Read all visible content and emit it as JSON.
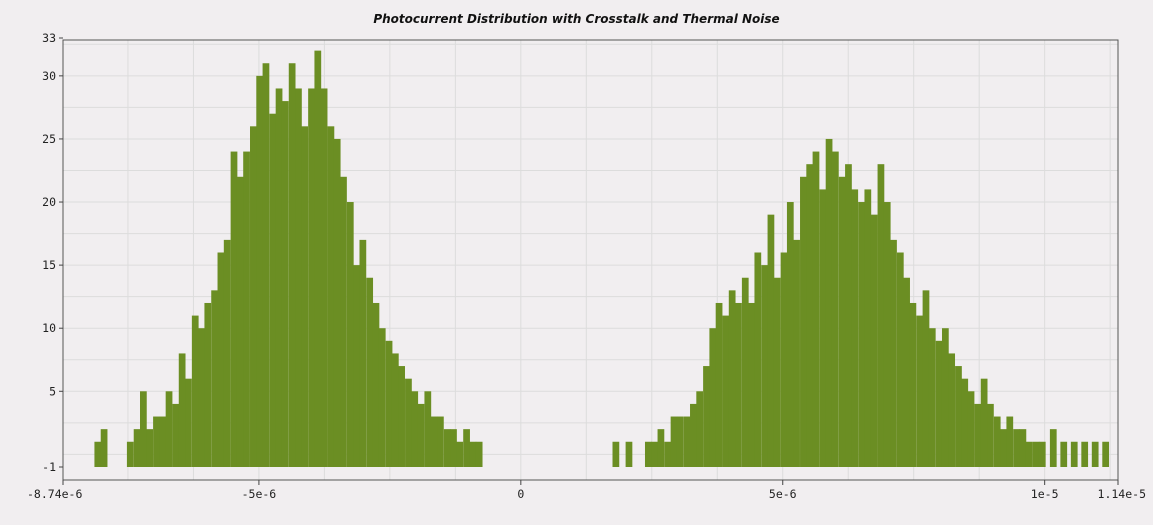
{
  "chart_data": {
    "type": "bar",
    "title": "Photocurrent Distribution with Crosstalk and Thermal Noise",
    "xlabel": "",
    "ylabel": "",
    "xlim": [
      -8.74e-06,
      1.14e-05
    ],
    "ylim": [
      -1,
      33
    ],
    "grid": true,
    "legend": "none",
    "bar_color": "#6b8e23",
    "x_ticks": [
      {
        "value": -8.74e-06,
        "label": "-8.74e-6"
      },
      {
        "value": -5e-06,
        "label": "-5e-6"
      },
      {
        "value": 0,
        "label": "0"
      },
      {
        "value": 5e-06,
        "label": "5e-6"
      },
      {
        "value": 1e-05,
        "label": "1e-5"
      },
      {
        "value": 1.14e-05,
        "label": "1.14e-5"
      }
    ],
    "y_ticks": [
      {
        "value": -1,
        "label": "-1"
      },
      {
        "value": 5,
        "label": "5"
      },
      {
        "value": 10,
        "label": "10"
      },
      {
        "value": 15,
        "label": "15"
      },
      {
        "value": 20,
        "label": "20"
      },
      {
        "value": 25,
        "label": "25"
      },
      {
        "value": 30,
        "label": "30"
      },
      {
        "value": 33,
        "label": "33"
      }
    ],
    "bin_width": 1.23e-07,
    "bins": [
      {
        "x": -8.14e-06,
        "count": 1
      },
      {
        "x": -8.02e-06,
        "count": 2
      },
      {
        "x": -7.52e-06,
        "count": 1
      },
      {
        "x": -7.39e-06,
        "count": 2
      },
      {
        "x": -7.27e-06,
        "count": 5
      },
      {
        "x": -7.15e-06,
        "count": 2
      },
      {
        "x": -7.02e-06,
        "count": 3
      },
      {
        "x": -6.9e-06,
        "count": 3
      },
      {
        "x": -6.78e-06,
        "count": 5
      },
      {
        "x": -6.65e-06,
        "count": 4
      },
      {
        "x": -6.53e-06,
        "count": 8
      },
      {
        "x": -6.41e-06,
        "count": 6
      },
      {
        "x": -6.28e-06,
        "count": 11
      },
      {
        "x": -6.16e-06,
        "count": 10
      },
      {
        "x": -6.04e-06,
        "count": 12
      },
      {
        "x": -5.91e-06,
        "count": 13
      },
      {
        "x": -5.79e-06,
        "count": 16
      },
      {
        "x": -5.67e-06,
        "count": 17
      },
      {
        "x": -5.54e-06,
        "count": 24
      },
      {
        "x": -5.42e-06,
        "count": 22
      },
      {
        "x": -5.3e-06,
        "count": 24
      },
      {
        "x": -5.17e-06,
        "count": 26
      },
      {
        "x": -5.05e-06,
        "count": 30
      },
      {
        "x": -4.93e-06,
        "count": 31
      },
      {
        "x": -4.8e-06,
        "count": 27
      },
      {
        "x": -4.68e-06,
        "count": 29
      },
      {
        "x": -4.56e-06,
        "count": 28
      },
      {
        "x": -4.43e-06,
        "count": 31
      },
      {
        "x": -4.31e-06,
        "count": 29
      },
      {
        "x": -4.19e-06,
        "count": 26
      },
      {
        "x": -4.06e-06,
        "count": 29
      },
      {
        "x": -3.94e-06,
        "count": 32
      },
      {
        "x": -3.82e-06,
        "count": 29
      },
      {
        "x": -3.69e-06,
        "count": 26
      },
      {
        "x": -3.57e-06,
        "count": 25
      },
      {
        "x": -3.45e-06,
        "count": 22
      },
      {
        "x": -3.32e-06,
        "count": 20
      },
      {
        "x": -3.2e-06,
        "count": 15
      },
      {
        "x": -3.08e-06,
        "count": 17
      },
      {
        "x": -2.95e-06,
        "count": 14
      },
      {
        "x": -2.83e-06,
        "count": 12
      },
      {
        "x": -2.71e-06,
        "count": 10
      },
      {
        "x": -2.58e-06,
        "count": 9
      },
      {
        "x": -2.46e-06,
        "count": 8
      },
      {
        "x": -2.34e-06,
        "count": 7
      },
      {
        "x": -2.21e-06,
        "count": 6
      },
      {
        "x": -2.09e-06,
        "count": 5
      },
      {
        "x": -1.97e-06,
        "count": 4
      },
      {
        "x": -1.84e-06,
        "count": 5
      },
      {
        "x": -1.72e-06,
        "count": 3
      },
      {
        "x": -1.6e-06,
        "count": 3
      },
      {
        "x": -1.47e-06,
        "count": 2
      },
      {
        "x": -1.35e-06,
        "count": 2
      },
      {
        "x": -1.23e-06,
        "count": 1
      },
      {
        "x": -1.1e-06,
        "count": 2
      },
      {
        "x": -9.8e-07,
        "count": 1
      },
      {
        "x": -8.6e-07,
        "count": 1
      },
      {
        "x": 1.75e-06,
        "count": 1
      },
      {
        "x": 2e-06,
        "count": 1
      },
      {
        "x": 2.37e-06,
        "count": 1
      },
      {
        "x": 2.49e-06,
        "count": 1
      },
      {
        "x": 2.61e-06,
        "count": 2
      },
      {
        "x": 2.74e-06,
        "count": 1
      },
      {
        "x": 2.86e-06,
        "count": 3
      },
      {
        "x": 2.98e-06,
        "count": 3
      },
      {
        "x": 3.11e-06,
        "count": 3
      },
      {
        "x": 3.23e-06,
        "count": 4
      },
      {
        "x": 3.35e-06,
        "count": 5
      },
      {
        "x": 3.48e-06,
        "count": 7
      },
      {
        "x": 3.6e-06,
        "count": 10
      },
      {
        "x": 3.72e-06,
        "count": 12
      },
      {
        "x": 3.85e-06,
        "count": 11
      },
      {
        "x": 3.97e-06,
        "count": 13
      },
      {
        "x": 4.09e-06,
        "count": 12
      },
      {
        "x": 4.22e-06,
        "count": 14
      },
      {
        "x": 4.34e-06,
        "count": 12
      },
      {
        "x": 4.46e-06,
        "count": 16
      },
      {
        "x": 4.59e-06,
        "count": 15
      },
      {
        "x": 4.71e-06,
        "count": 19
      },
      {
        "x": 4.83e-06,
        "count": 14
      },
      {
        "x": 4.96e-06,
        "count": 16
      },
      {
        "x": 5.08e-06,
        "count": 20
      },
      {
        "x": 5.2e-06,
        "count": 17
      },
      {
        "x": 5.33e-06,
        "count": 22
      },
      {
        "x": 5.45e-06,
        "count": 23
      },
      {
        "x": 5.57e-06,
        "count": 24
      },
      {
        "x": 5.7e-06,
        "count": 21
      },
      {
        "x": 5.82e-06,
        "count": 25
      },
      {
        "x": 5.94e-06,
        "count": 24
      },
      {
        "x": 6.07e-06,
        "count": 22
      },
      {
        "x": 6.19e-06,
        "count": 23
      },
      {
        "x": 6.31e-06,
        "count": 21
      },
      {
        "x": 6.44e-06,
        "count": 20
      },
      {
        "x": 6.56e-06,
        "count": 21
      },
      {
        "x": 6.68e-06,
        "count": 19
      },
      {
        "x": 6.81e-06,
        "count": 23
      },
      {
        "x": 6.93e-06,
        "count": 20
      },
      {
        "x": 7.05e-06,
        "count": 17
      },
      {
        "x": 7.18e-06,
        "count": 16
      },
      {
        "x": 7.3e-06,
        "count": 14
      },
      {
        "x": 7.42e-06,
        "count": 12
      },
      {
        "x": 7.55e-06,
        "count": 11
      },
      {
        "x": 7.67e-06,
        "count": 13
      },
      {
        "x": 7.79e-06,
        "count": 10
      },
      {
        "x": 7.92e-06,
        "count": 9
      },
      {
        "x": 8.04e-06,
        "count": 10
      },
      {
        "x": 8.16e-06,
        "count": 8
      },
      {
        "x": 8.29e-06,
        "count": 7
      },
      {
        "x": 8.41e-06,
        "count": 6
      },
      {
        "x": 8.53e-06,
        "count": 5
      },
      {
        "x": 8.66e-06,
        "count": 4
      },
      {
        "x": 8.78e-06,
        "count": 6
      },
      {
        "x": 8.9e-06,
        "count": 4
      },
      {
        "x": 9.03e-06,
        "count": 3
      },
      {
        "x": 9.15e-06,
        "count": 2
      },
      {
        "x": 9.27e-06,
        "count": 3
      },
      {
        "x": 9.4e-06,
        "count": 2
      },
      {
        "x": 9.52e-06,
        "count": 2
      },
      {
        "x": 9.64e-06,
        "count": 1
      },
      {
        "x": 9.77e-06,
        "count": 1
      },
      {
        "x": 9.89e-06,
        "count": 1
      },
      {
        "x": 1.01e-05,
        "count": 2
      },
      {
        "x": 1.03e-05,
        "count": 1
      },
      {
        "x": 1.05e-05,
        "count": 1
      },
      {
        "x": 1.07e-05,
        "count": 1
      },
      {
        "x": 1.09e-05,
        "count": 1
      },
      {
        "x": 1.11e-05,
        "count": 1
      }
    ]
  }
}
